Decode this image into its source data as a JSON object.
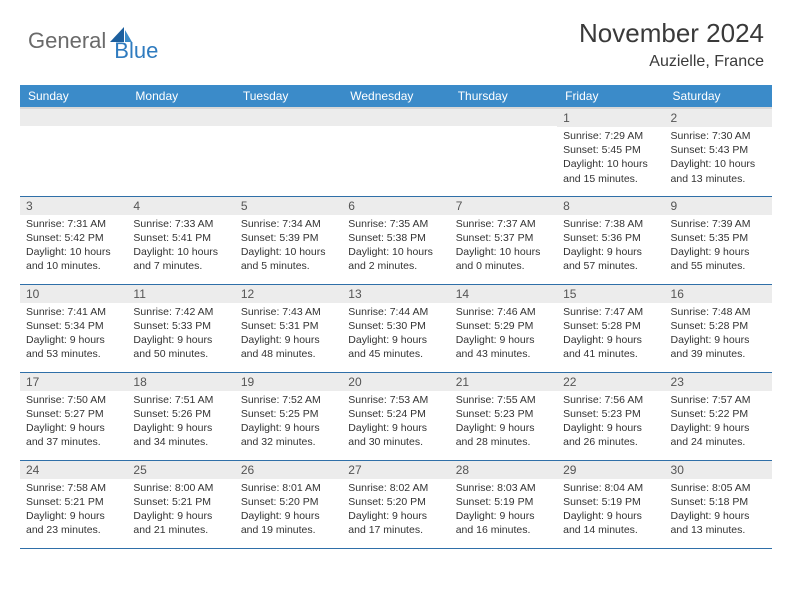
{
  "brand": {
    "part1": "General",
    "part2": "Blue"
  },
  "title": "November 2024",
  "location": "Auzielle, France",
  "colors": {
    "header_bg": "#3b8bc9",
    "header_fg": "#ffffff",
    "daynum_bg": "#ececec",
    "row_divider": "#2f6fa8",
    "logo_accent": "#2f7bbf",
    "logo_gray": "#6a6a6a"
  },
  "weekdays": [
    "Sunday",
    "Monday",
    "Tuesday",
    "Wednesday",
    "Thursday",
    "Friday",
    "Saturday"
  ],
  "weeks": [
    [
      {
        "n": "",
        "sunrise": "",
        "sunset": "",
        "daylight": ""
      },
      {
        "n": "",
        "sunrise": "",
        "sunset": "",
        "daylight": ""
      },
      {
        "n": "",
        "sunrise": "",
        "sunset": "",
        "daylight": ""
      },
      {
        "n": "",
        "sunrise": "",
        "sunset": "",
        "daylight": ""
      },
      {
        "n": "",
        "sunrise": "",
        "sunset": "",
        "daylight": ""
      },
      {
        "n": "1",
        "sunrise": "Sunrise: 7:29 AM",
        "sunset": "Sunset: 5:45 PM",
        "daylight": "Daylight: 10 hours and 15 minutes."
      },
      {
        "n": "2",
        "sunrise": "Sunrise: 7:30 AM",
        "sunset": "Sunset: 5:43 PM",
        "daylight": "Daylight: 10 hours and 13 minutes."
      }
    ],
    [
      {
        "n": "3",
        "sunrise": "Sunrise: 7:31 AM",
        "sunset": "Sunset: 5:42 PM",
        "daylight": "Daylight: 10 hours and 10 minutes."
      },
      {
        "n": "4",
        "sunrise": "Sunrise: 7:33 AM",
        "sunset": "Sunset: 5:41 PM",
        "daylight": "Daylight: 10 hours and 7 minutes."
      },
      {
        "n": "5",
        "sunrise": "Sunrise: 7:34 AM",
        "sunset": "Sunset: 5:39 PM",
        "daylight": "Daylight: 10 hours and 5 minutes."
      },
      {
        "n": "6",
        "sunrise": "Sunrise: 7:35 AM",
        "sunset": "Sunset: 5:38 PM",
        "daylight": "Daylight: 10 hours and 2 minutes."
      },
      {
        "n": "7",
        "sunrise": "Sunrise: 7:37 AM",
        "sunset": "Sunset: 5:37 PM",
        "daylight": "Daylight: 10 hours and 0 minutes."
      },
      {
        "n": "8",
        "sunrise": "Sunrise: 7:38 AM",
        "sunset": "Sunset: 5:36 PM",
        "daylight": "Daylight: 9 hours and 57 minutes."
      },
      {
        "n": "9",
        "sunrise": "Sunrise: 7:39 AM",
        "sunset": "Sunset: 5:35 PM",
        "daylight": "Daylight: 9 hours and 55 minutes."
      }
    ],
    [
      {
        "n": "10",
        "sunrise": "Sunrise: 7:41 AM",
        "sunset": "Sunset: 5:34 PM",
        "daylight": "Daylight: 9 hours and 53 minutes."
      },
      {
        "n": "11",
        "sunrise": "Sunrise: 7:42 AM",
        "sunset": "Sunset: 5:33 PM",
        "daylight": "Daylight: 9 hours and 50 minutes."
      },
      {
        "n": "12",
        "sunrise": "Sunrise: 7:43 AM",
        "sunset": "Sunset: 5:31 PM",
        "daylight": "Daylight: 9 hours and 48 minutes."
      },
      {
        "n": "13",
        "sunrise": "Sunrise: 7:44 AM",
        "sunset": "Sunset: 5:30 PM",
        "daylight": "Daylight: 9 hours and 45 minutes."
      },
      {
        "n": "14",
        "sunrise": "Sunrise: 7:46 AM",
        "sunset": "Sunset: 5:29 PM",
        "daylight": "Daylight: 9 hours and 43 minutes."
      },
      {
        "n": "15",
        "sunrise": "Sunrise: 7:47 AM",
        "sunset": "Sunset: 5:28 PM",
        "daylight": "Daylight: 9 hours and 41 minutes."
      },
      {
        "n": "16",
        "sunrise": "Sunrise: 7:48 AM",
        "sunset": "Sunset: 5:28 PM",
        "daylight": "Daylight: 9 hours and 39 minutes."
      }
    ],
    [
      {
        "n": "17",
        "sunrise": "Sunrise: 7:50 AM",
        "sunset": "Sunset: 5:27 PM",
        "daylight": "Daylight: 9 hours and 37 minutes."
      },
      {
        "n": "18",
        "sunrise": "Sunrise: 7:51 AM",
        "sunset": "Sunset: 5:26 PM",
        "daylight": "Daylight: 9 hours and 34 minutes."
      },
      {
        "n": "19",
        "sunrise": "Sunrise: 7:52 AM",
        "sunset": "Sunset: 5:25 PM",
        "daylight": "Daylight: 9 hours and 32 minutes."
      },
      {
        "n": "20",
        "sunrise": "Sunrise: 7:53 AM",
        "sunset": "Sunset: 5:24 PM",
        "daylight": "Daylight: 9 hours and 30 minutes."
      },
      {
        "n": "21",
        "sunrise": "Sunrise: 7:55 AM",
        "sunset": "Sunset: 5:23 PM",
        "daylight": "Daylight: 9 hours and 28 minutes."
      },
      {
        "n": "22",
        "sunrise": "Sunrise: 7:56 AM",
        "sunset": "Sunset: 5:23 PM",
        "daylight": "Daylight: 9 hours and 26 minutes."
      },
      {
        "n": "23",
        "sunrise": "Sunrise: 7:57 AM",
        "sunset": "Sunset: 5:22 PM",
        "daylight": "Daylight: 9 hours and 24 minutes."
      }
    ],
    [
      {
        "n": "24",
        "sunrise": "Sunrise: 7:58 AM",
        "sunset": "Sunset: 5:21 PM",
        "daylight": "Daylight: 9 hours and 23 minutes."
      },
      {
        "n": "25",
        "sunrise": "Sunrise: 8:00 AM",
        "sunset": "Sunset: 5:21 PM",
        "daylight": "Daylight: 9 hours and 21 minutes."
      },
      {
        "n": "26",
        "sunrise": "Sunrise: 8:01 AM",
        "sunset": "Sunset: 5:20 PM",
        "daylight": "Daylight: 9 hours and 19 minutes."
      },
      {
        "n": "27",
        "sunrise": "Sunrise: 8:02 AM",
        "sunset": "Sunset: 5:20 PM",
        "daylight": "Daylight: 9 hours and 17 minutes."
      },
      {
        "n": "28",
        "sunrise": "Sunrise: 8:03 AM",
        "sunset": "Sunset: 5:19 PM",
        "daylight": "Daylight: 9 hours and 16 minutes."
      },
      {
        "n": "29",
        "sunrise": "Sunrise: 8:04 AM",
        "sunset": "Sunset: 5:19 PM",
        "daylight": "Daylight: 9 hours and 14 minutes."
      },
      {
        "n": "30",
        "sunrise": "Sunrise: 8:05 AM",
        "sunset": "Sunset: 5:18 PM",
        "daylight": "Daylight: 9 hours and 13 minutes."
      }
    ]
  ]
}
